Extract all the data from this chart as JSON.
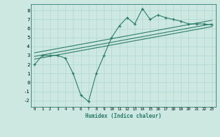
{
  "title": "",
  "xlabel": "Humidex (Indice chaleur)",
  "xlim": [
    -0.5,
    23.5
  ],
  "ylim": [
    -2.7,
    8.7
  ],
  "xticks": [
    0,
    1,
    2,
    3,
    4,
    5,
    6,
    7,
    8,
    9,
    10,
    11,
    12,
    13,
    14,
    15,
    16,
    17,
    18,
    19,
    20,
    21,
    22,
    23
  ],
  "yticks": [
    -2,
    -1,
    0,
    1,
    2,
    3,
    4,
    5,
    6,
    7,
    8
  ],
  "bg_color": "#cce8e0",
  "line_color": "#2a7a6a",
  "grid_color": "#b0d8ce",
  "main_x": [
    0,
    1,
    2,
    3,
    4,
    5,
    6,
    7,
    8,
    9,
    10,
    11,
    12,
    13,
    14,
    15,
    16,
    17,
    18,
    19,
    20,
    21,
    22,
    23
  ],
  "main_y": [
    2.0,
    3.0,
    3.0,
    3.0,
    2.7,
    1.0,
    -1.4,
    -2.1,
    1.0,
    3.0,
    5.0,
    6.3,
    7.2,
    6.5,
    8.2,
    7.0,
    7.5,
    7.2,
    7.0,
    6.8,
    6.5,
    6.5,
    6.5,
    6.4
  ],
  "trend_lines": [
    {
      "x": [
        0,
        23
      ],
      "y": [
        2.9,
        6.5
      ]
    },
    {
      "x": [
        0,
        23
      ],
      "y": [
        3.3,
        6.9
      ]
    },
    {
      "x": [
        0,
        23
      ],
      "y": [
        2.6,
        6.2
      ]
    }
  ]
}
